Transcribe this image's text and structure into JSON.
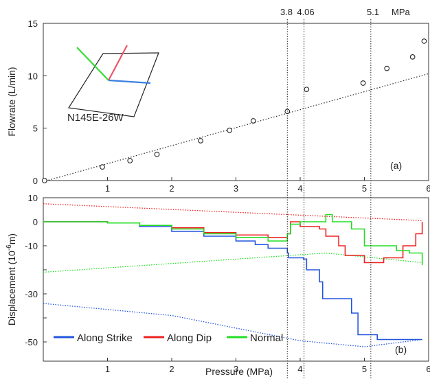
{
  "chart_data": [
    {
      "type": "scatter",
      "panel_label": "(a)",
      "title": "",
      "xlabel": "",
      "ylabel": "Flowrate (L/min)",
      "xlim": [
        0,
        6
      ],
      "ylim": [
        0,
        15
      ],
      "x_ticks": [
        "",
        "1",
        "2",
        "3",
        "4",
        "5",
        "6"
      ],
      "y_ticks": [
        "0",
        "5",
        "10",
        "15"
      ],
      "points": {
        "x": [
          0.02,
          0.92,
          1.35,
          1.77,
          2.45,
          2.9,
          3.27,
          3.8,
          4.1,
          4.98,
          5.35,
          5.75,
          5.93
        ],
        "y": [
          0.0,
          1.3,
          1.9,
          2.5,
          3.8,
          4.8,
          5.7,
          6.6,
          8.7,
          9.3,
          10.7,
          11.8,
          13.3
        ]
      },
      "fit_line": {
        "x": [
          0,
          6
        ],
        "y": [
          -0.1,
          10.2
        ]
      },
      "markers": {
        "values": [
          3.8,
          4.06,
          5.1
        ],
        "labels": [
          "3.8",
          "4.06",
          "5.1"
        ],
        "unit": "MPa"
      },
      "inset": {
        "label": "N145E-26W",
        "colors": {
          "strike": "#3c7fe0",
          "dip": "#ee5566",
          "normal": "#33dd33"
        }
      }
    },
    {
      "type": "line",
      "panel_label": "(b)",
      "title": "",
      "xlabel": "Pressure (MPa)",
      "ylabel": "Displacement (10",
      "ylabel_exp": "-6",
      "ylabel_end": "m)",
      "xlim": [
        0,
        6
      ],
      "ylim": [
        -58,
        10
      ],
      "x_ticks": [
        "",
        "1",
        "2",
        "3",
        "4",
        "5",
        "6"
      ],
      "y_ticks": [
        "10",
        "0",
        "-10",
        "",
        "-30",
        "",
        "-50"
      ],
      "y_tick_values": [
        10,
        0,
        -10,
        -20,
        -30,
        -40,
        -50
      ],
      "legend_position": "bottom-left",
      "series": [
        {
          "name": "Along Strike",
          "color": "#2255dd",
          "x": [
            0,
            0.5,
            1.0,
            1.5,
            2.0,
            2.5,
            3.0,
            3.3,
            3.5,
            3.8,
            3.82,
            4.05,
            4.1,
            4.3,
            4.35,
            4.8,
            4.9,
            5.2,
            5.5,
            5.9
          ],
          "y": [
            0,
            0,
            -0.5,
            -2,
            -4,
            -6,
            -8,
            -9.5,
            -11,
            -13,
            -15,
            -15.5,
            -20,
            -25,
            -32,
            -38,
            -47,
            -49,
            -49,
            -49
          ]
        },
        {
          "name": "Along Dip",
          "color": "#ee2222",
          "x": [
            0,
            0.5,
            1.0,
            1.5,
            2.0,
            2.5,
            3.0,
            3.5,
            3.8,
            3.85,
            4.0,
            4.3,
            4.4,
            4.6,
            4.7,
            5.0,
            5.3,
            5.6,
            5.8,
            5.9
          ],
          "y": [
            0,
            0,
            -0.5,
            -1.5,
            -2.5,
            -4.5,
            -5.5,
            -6.5,
            -5,
            0,
            -2,
            -3,
            -6,
            -10,
            -14,
            -17,
            -15,
            -10,
            -5,
            0
          ]
        },
        {
          "name": "Normal",
          "color": "#22dd22",
          "x": [
            0,
            0.5,
            1.0,
            1.5,
            2.0,
            2.5,
            3.0,
            3.5,
            3.8,
            3.85,
            4.0,
            4.4,
            4.5,
            4.8,
            5.0,
            5.3,
            5.5,
            5.7,
            5.9
          ],
          "y": [
            0,
            0,
            -0.5,
            -1.5,
            -3,
            -5,
            -6.5,
            -8,
            -5,
            -1,
            0,
            3,
            0,
            -3,
            -10,
            -10,
            -12,
            -13,
            -18
          ]
        }
      ],
      "dotted_series": [
        {
          "color": "#ee2222",
          "x": [
            0,
            5.9
          ],
          "y": [
            7.5,
            0.5
          ]
        },
        {
          "color": "#22dd22",
          "x": [
            0,
            4.4,
            5.9
          ],
          "y": [
            -21,
            -13,
            -17
          ]
        },
        {
          "color": "#2255dd",
          "x": [
            0,
            2.0,
            4.0,
            5.0,
            5.9
          ],
          "y": [
            -34,
            -39,
            -49.5,
            -52,
            -49
          ]
        }
      ]
    }
  ]
}
